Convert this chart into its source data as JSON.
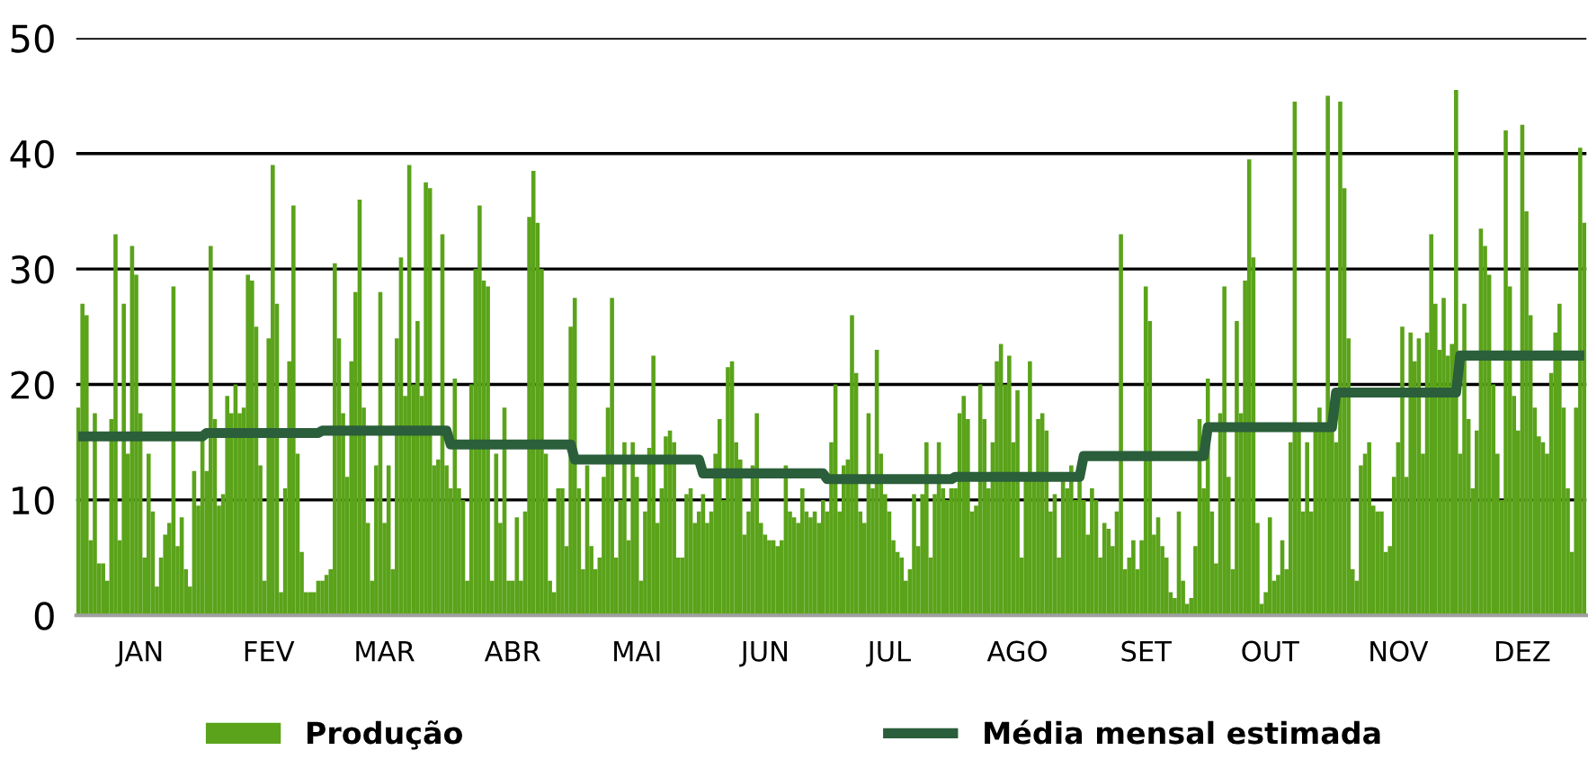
{
  "chart_data": {
    "type": "bar",
    "categories": [
      null,
      null,
      null,
      null,
      null,
      null,
      null,
      null,
      null,
      null,
      null,
      null,
      null,
      null,
      null,
      "JAN",
      null,
      null,
      null,
      null,
      null,
      null,
      null,
      null,
      null,
      null,
      null,
      null,
      null,
      null,
      null,
      null,
      null,
      null,
      null,
      null,
      null,
      null,
      null,
      null,
      null,
      null,
      null,
      null,
      null,
      null,
      "FEV",
      null,
      null,
      null,
      null,
      null,
      null,
      null,
      null,
      null,
      null,
      null,
      null,
      null,
      null,
      null,
      null,
      null,
      null,
      null,
      null,
      null,
      null,
      null,
      null,
      null,
      null,
      null,
      "MAR",
      null,
      null,
      null,
      null,
      null,
      null,
      null,
      null,
      null,
      null,
      null,
      null,
      null,
      null,
      null,
      null,
      null,
      null,
      null,
      null,
      null,
      null,
      null,
      null,
      null,
      null,
      null,
      null,
      null,
      null,
      "ABR",
      null,
      null,
      null,
      null,
      null,
      null,
      null,
      null,
      null,
      null,
      null,
      null,
      null,
      null,
      null,
      null,
      null,
      null,
      null,
      null,
      null,
      null,
      null,
      null,
      null,
      null,
      null,
      null,
      null,
      "MAI",
      null,
      null,
      null,
      null,
      null,
      null,
      null,
      null,
      null,
      null,
      null,
      null,
      null,
      null,
      null,
      null,
      null,
      null,
      null,
      null,
      null,
      null,
      null,
      null,
      null,
      null,
      null,
      null,
      null,
      null,
      "JUN",
      null,
      null,
      null,
      null,
      null,
      null,
      null,
      null,
      null,
      null,
      null,
      null,
      null,
      null,
      null,
      null,
      null,
      null,
      null,
      null,
      null,
      null,
      null,
      null,
      null,
      null,
      null,
      null,
      null,
      "JUL",
      null,
      null,
      null,
      null,
      null,
      null,
      null,
      null,
      null,
      null,
      null,
      null,
      null,
      null,
      null,
      null,
      null,
      null,
      null,
      null,
      null,
      null,
      null,
      null,
      null,
      null,
      null,
      null,
      null,
      null,
      "AGO",
      null,
      null,
      null,
      null,
      null,
      null,
      null,
      null,
      null,
      null,
      null,
      null,
      null,
      null,
      null,
      null,
      null,
      null,
      null,
      null,
      null,
      null,
      null,
      null,
      null,
      null,
      null,
      null,
      null,
      null,
      "SET",
      null,
      null,
      null,
      null,
      null,
      null,
      null,
      null,
      null,
      null,
      null,
      null,
      null,
      null,
      null,
      null,
      null,
      null,
      null,
      null,
      null,
      null,
      null,
      null,
      null,
      null,
      null,
      null,
      null,
      "OUT",
      null,
      null,
      null,
      null,
      null,
      null,
      null,
      null,
      null,
      null,
      null,
      null,
      null,
      null,
      null,
      null,
      null,
      null,
      null,
      null,
      null,
      null,
      null,
      null,
      null,
      null,
      null,
      null,
      null,
      null,
      "NOV",
      null,
      null,
      null,
      null,
      null,
      null,
      null,
      null,
      null,
      null,
      null,
      null,
      null,
      null,
      null,
      null,
      null,
      null,
      null,
      null,
      null,
      null,
      null,
      null,
      null,
      null,
      null,
      null,
      null,
      "DEZ",
      null,
      null,
      null,
      null,
      null,
      null,
      null,
      null,
      null,
      null,
      null,
      null,
      null,
      null,
      null
    ],
    "series": [
      {
        "name": "Produção",
        "color": "#5aa31a",
        "values": [
          18,
          27,
          26,
          6.5,
          17.5,
          4.5,
          4.5,
          3,
          17,
          33,
          6.5,
          27,
          14,
          32,
          29.5,
          17.5,
          5,
          14,
          9,
          2.5,
          5,
          7,
          8,
          28.5,
          6,
          8.5,
          4,
          2.5,
          12.5,
          9.5,
          15.5,
          12.5,
          32,
          17,
          9.5,
          10.5,
          19,
          17.5,
          20,
          17.5,
          18,
          29.5,
          29,
          25,
          13,
          3,
          24,
          39,
          27,
          2,
          11,
          22,
          35.5,
          14,
          5.5,
          2,
          2,
          2,
          3,
          3,
          3.5,
          4,
          30.5,
          24,
          17.5,
          12,
          22,
          28,
          36,
          18,
          8,
          3,
          13,
          28,
          8,
          13,
          4,
          24,
          31,
          19,
          39,
          20,
          25.5,
          19,
          37.5,
          37,
          13,
          13.5,
          33,
          13,
          11,
          20.5,
          11,
          10,
          3,
          20,
          30,
          35.5,
          29,
          28.5,
          3,
          14,
          8,
          18,
          3,
          3,
          8.5,
          3,
          9,
          34.5,
          38.5,
          34,
          30,
          14,
          3,
          2,
          11,
          11,
          6,
          25,
          27.5,
          11,
          4,
          13,
          6,
          4,
          5,
          12,
          18,
          27.5,
          5,
          10,
          15,
          6.5,
          15,
          12,
          3,
          9,
          14.5,
          22.5,
          8,
          11,
          15.5,
          16,
          15,
          5,
          5,
          10.5,
          11,
          8,
          9,
          10.5,
          8,
          9,
          14,
          17,
          10,
          21.5,
          22,
          15,
          13.5,
          7,
          9,
          13,
          17.5,
          8,
          7,
          6.5,
          6.5,
          6,
          6.5,
          13,
          9,
          8.5,
          8,
          11,
          9,
          8.5,
          9,
          8,
          10,
          9,
          15,
          20,
          9,
          13,
          13.5,
          26,
          21,
          9,
          8,
          17.5,
          11,
          23,
          14,
          10.5,
          9,
          6.5,
          5.5,
          5,
          3,
          4,
          10.5,
          6,
          10.5,
          15,
          5,
          10.5,
          15,
          11,
          10,
          11,
          11,
          17.5,
          19,
          17,
          9,
          9.5,
          20,
          17,
          11,
          15,
          22,
          23.5,
          20,
          22.5,
          15,
          19.5,
          5,
          12,
          22,
          12,
          17,
          17.5,
          16,
          9,
          10.5,
          5,
          12,
          11,
          13,
          10,
          12,
          10,
          7,
          11,
          10,
          5,
          8,
          7.5,
          6,
          9,
          33,
          4,
          5,
          6.5,
          4,
          6.5,
          28.5,
          25.5,
          7,
          8.5,
          6,
          5,
          2,
          1.5,
          9,
          3,
          1,
          1.5,
          6,
          17,
          11,
          20.5,
          9,
          4.5,
          17.5,
          28.5,
          12,
          4,
          25.5,
          17.5,
          29,
          39.5,
          31,
          8,
          1,
          2,
          8.5,
          3,
          3.5,
          6.5,
          4,
          15,
          44.5,
          16,
          9,
          15,
          9,
          16,
          18,
          16,
          45,
          16,
          15,
          44.5,
          37,
          24,
          4,
          3,
          13,
          14,
          15,
          9.5,
          9,
          9,
          5.5,
          6,
          12,
          15,
          25,
          12,
          24.5,
          22,
          24,
          14,
          24.5,
          33,
          27,
          23,
          27.5,
          22.5,
          23.5,
          45.5,
          14,
          27,
          17,
          11,
          16,
          33.5,
          32,
          29.5,
          20,
          14,
          10,
          42,
          28.5,
          19,
          16,
          42.5,
          35,
          26,
          18,
          15.5,
          15,
          14,
          21,
          24.5,
          27,
          18,
          11,
          5.5,
          18,
          40.5,
          34
        ]
      },
      {
        "name": "Média mensal estimada",
        "type": "line",
        "color": "#2b5e3b",
        "values": [
          15.5,
          15.5,
          15.5,
          15.5,
          15.5,
          15.5,
          15.5,
          15.5,
          15.5,
          15.5,
          15.5,
          15.5,
          15.5,
          15.5,
          15.5,
          15.5,
          15.5,
          15.5,
          15.5,
          15.5,
          15.5,
          15.5,
          15.5,
          15.5,
          15.5,
          15.5,
          15.5,
          15.5,
          15.5,
          15.5,
          15.5,
          15.8,
          15.8,
          15.8,
          15.8,
          15.8,
          15.8,
          15.8,
          15.8,
          15.8,
          15.8,
          15.8,
          15.8,
          15.8,
          15.8,
          15.8,
          15.8,
          15.8,
          15.8,
          15.8,
          15.8,
          15.8,
          15.8,
          15.8,
          15.8,
          15.8,
          15.8,
          15.8,
          15.8,
          16,
          16,
          16,
          16,
          16,
          16,
          16,
          16,
          16,
          16,
          16,
          16,
          16,
          16,
          16,
          16,
          16,
          16,
          16,
          16,
          16,
          16,
          16,
          16,
          16,
          16,
          16,
          16,
          16,
          16,
          16,
          14.8,
          14.8,
          14.8,
          14.8,
          14.8,
          14.8,
          14.8,
          14.8,
          14.8,
          14.8,
          14.8,
          14.8,
          14.8,
          14.8,
          14.8,
          14.8,
          14.8,
          14.8,
          14.8,
          14.8,
          14.8,
          14.8,
          14.8,
          14.8,
          14.8,
          14.8,
          14.8,
          14.8,
          14.8,
          14.8,
          13.5,
          13.5,
          13.5,
          13.5,
          13.5,
          13.5,
          13.5,
          13.5,
          13.5,
          13.5,
          13.5,
          13.5,
          13.5,
          13.5,
          13.5,
          13.5,
          13.5,
          13.5,
          13.5,
          13.5,
          13.5,
          13.5,
          13.5,
          13.5,
          13.5,
          13.5,
          13.5,
          13.5,
          13.5,
          13.5,
          13.5,
          12.3,
          12.3,
          12.3,
          12.3,
          12.3,
          12.3,
          12.3,
          12.3,
          12.3,
          12.3,
          12.3,
          12.3,
          12.3,
          12.3,
          12.3,
          12.3,
          12.3,
          12.3,
          12.3,
          12.3,
          12.3,
          12.3,
          12.3,
          12.3,
          12.3,
          12.3,
          12.3,
          12.3,
          12.3,
          12.3,
          11.8,
          11.8,
          11.8,
          11.8,
          11.8,
          11.8,
          11.8,
          11.8,
          11.8,
          11.8,
          11.8,
          11.8,
          11.8,
          11.8,
          11.8,
          11.8,
          11.8,
          11.8,
          11.8,
          11.8,
          11.8,
          11.8,
          11.8,
          11.8,
          11.8,
          11.8,
          11.8,
          11.8,
          11.8,
          11.8,
          11.8,
          12,
          12,
          12,
          12,
          12,
          12,
          12,
          12,
          12,
          12,
          12,
          12,
          12,
          12,
          12,
          12,
          12,
          12,
          12,
          12,
          12,
          12,
          12,
          12,
          12,
          12,
          12,
          12,
          12,
          12,
          12,
          13.8,
          13.8,
          13.8,
          13.8,
          13.8,
          13.8,
          13.8,
          13.8,
          13.8,
          13.8,
          13.8,
          13.8,
          13.8,
          13.8,
          13.8,
          13.8,
          13.8,
          13.8,
          13.8,
          13.8,
          13.8,
          13.8,
          13.8,
          13.8,
          13.8,
          13.8,
          13.8,
          13.8,
          13.8,
          13.8,
          16.3,
          16.3,
          16.3,
          16.3,
          16.3,
          16.3,
          16.3,
          16.3,
          16.3,
          16.3,
          16.3,
          16.3,
          16.3,
          16.3,
          16.3,
          16.3,
          16.3,
          16.3,
          16.3,
          16.3,
          16.3,
          16.3,
          16.3,
          16.3,
          16.3,
          16.3,
          16.3,
          16.3,
          16.3,
          16.3,
          16.3,
          19.3,
          19.3,
          19.3,
          19.3,
          19.3,
          19.3,
          19.3,
          19.3,
          19.3,
          19.3,
          19.3,
          19.3,
          19.3,
          19.3,
          19.3,
          19.3,
          19.3,
          19.3,
          19.3,
          19.3,
          19.3,
          19.3,
          19.3,
          19.3,
          19.3,
          19.3,
          19.3,
          19.3,
          19.3,
          19.3,
          22.5,
          22.5,
          22.5,
          22.5,
          22.5,
          22.5,
          22.5,
          22.5,
          22.5,
          22.5,
          22.5,
          22.5,
          22.5,
          22.5,
          22.5,
          22.5,
          22.5,
          22.5,
          22.5,
          22.5,
          22.5,
          22.5,
          22.5,
          22.5,
          22.5,
          22.5,
          22.5,
          22.5,
          22.5,
          22.5,
          22.5
        ]
      }
    ],
    "ylim": [
      0,
      50
    ],
    "yticks": [
      0,
      10,
      20,
      30,
      40,
      50
    ],
    "grid": "y",
    "legend": "bottom",
    "marker": "none",
    "line_style": "solid"
  }
}
